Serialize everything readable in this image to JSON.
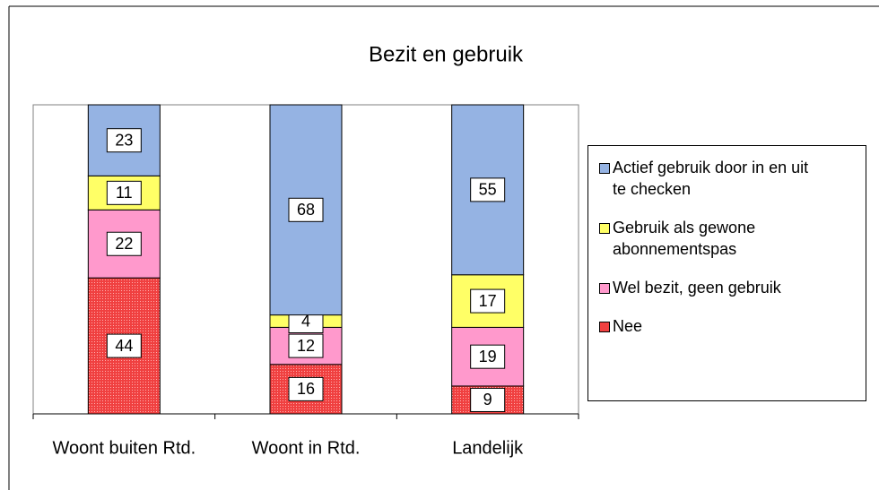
{
  "chart_data": {
    "type": "stacked_bar",
    "title": "Bezit en gebruik",
    "categories": [
      "Woont buiten Rtd.",
      "Woont in Rtd.",
      "Landelijk"
    ],
    "series": [
      {
        "name": "Actief gebruik door in en uit te checken",
        "color": "#95b3e3",
        "values": [
          23,
          68,
          55
        ]
      },
      {
        "name": "Gebruik als gewone abonnementspas",
        "color": "#ffff66",
        "values": [
          11,
          4,
          17
        ]
      },
      {
        "name": "Wel bezit, geen gebruik",
        "color": "#ff99cc",
        "values": [
          22,
          12,
          19
        ]
      },
      {
        "name": "Nee",
        "color": "#f04040",
        "values": [
          44,
          16,
          9
        ]
      }
    ],
    "ylim": [
      0,
      100
    ],
    "legend": "right"
  }
}
